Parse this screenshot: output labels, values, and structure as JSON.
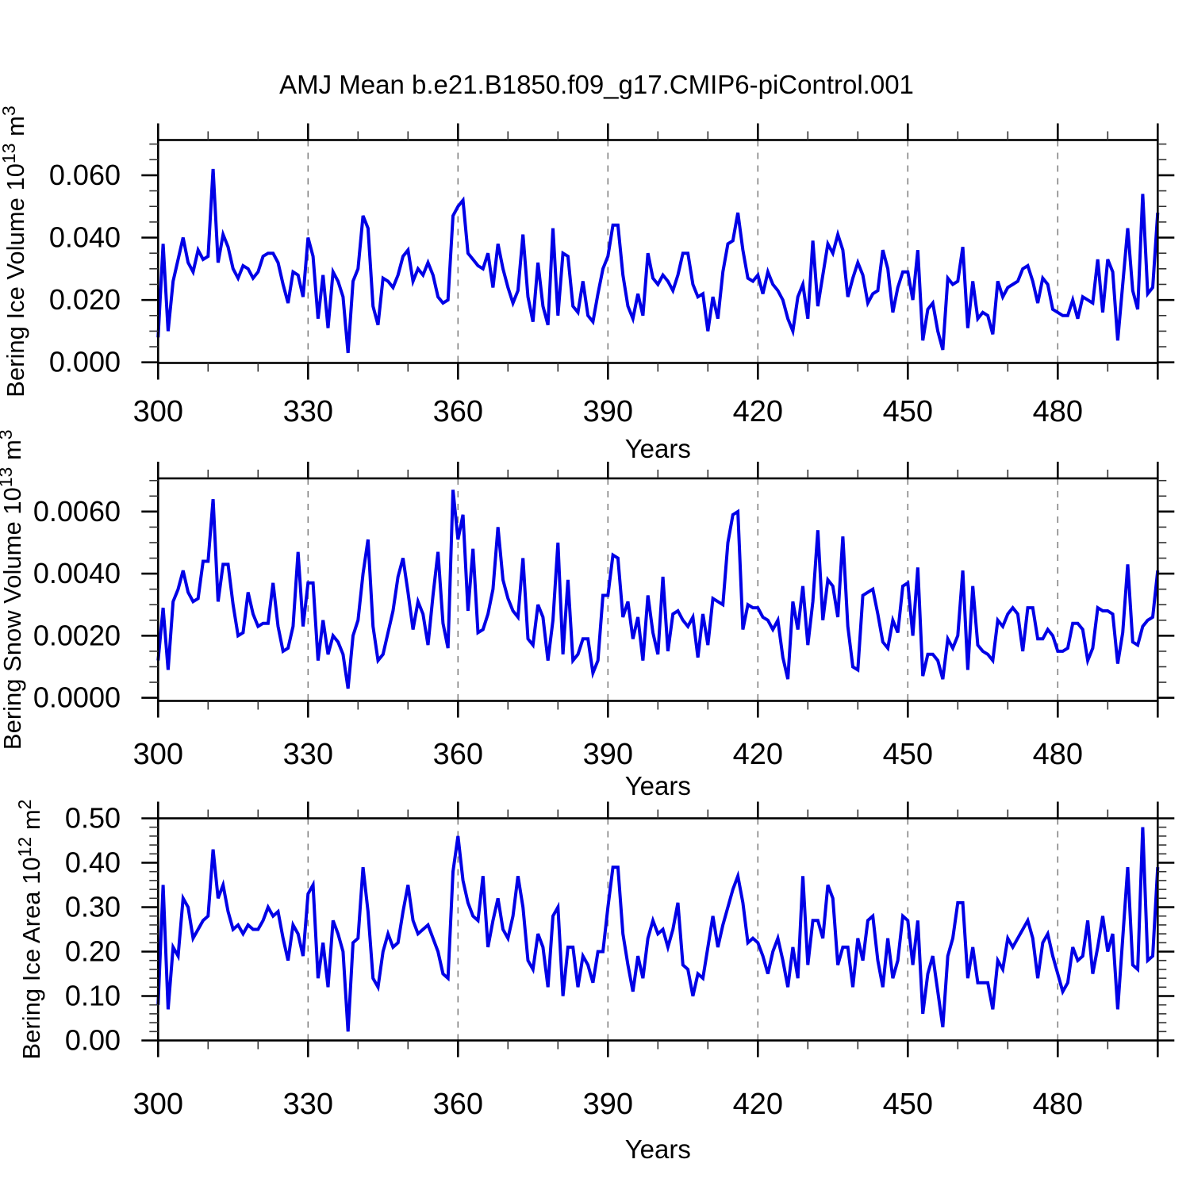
{
  "title": "AMJ Mean b.e21.B1850.f09_g17.CMIP6-piControl.001",
  "styles": {
    "line_color": "#0000e6",
    "grid_color": "#7d7d7d",
    "axis_color": "#000000",
    "minor_tick_color": "#333333"
  },
  "chart_data": [
    {
      "type": "line",
      "name": "bering-ice-volume",
      "ylabel": {
        "text": "Bering Ice Volume 10",
        "sup1": "13",
        "mid": " m",
        "sup2": "3"
      },
      "xlabel": "Years",
      "x_start": 300,
      "x_step": 1,
      "xlim": [
        300,
        500
      ],
      "ylim": [
        -0.0002,
        0.0713
      ],
      "x_ticks_major": [
        300,
        330,
        360,
        390,
        420,
        450,
        480
      ],
      "x_tick_labels": [
        "300",
        "330",
        "360",
        "390",
        "420",
        "450",
        "480"
      ],
      "x_minor_step": 10,
      "gridlines_x": [
        330,
        360,
        390,
        420,
        450,
        480
      ],
      "y_ticks": [
        0.0,
        0.02,
        0.04,
        0.06
      ],
      "y_tick_labels": [
        "0.000",
        "0.020",
        "0.040",
        "0.060"
      ],
      "y_minor_step": 0.005,
      "grid": "x-dashed",
      "legend": "none",
      "values": [
        0.008,
        0.038,
        0.01,
        0.026,
        0.033,
        0.04,
        0.032,
        0.029,
        0.036,
        0.033,
        0.034,
        0.062,
        0.032,
        0.041,
        0.037,
        0.03,
        0.027,
        0.031,
        0.03,
        0.027,
        0.029,
        0.034,
        0.035,
        0.035,
        0.032,
        0.025,
        0.019,
        0.029,
        0.028,
        0.021,
        0.04,
        0.034,
        0.014,
        0.028,
        0.011,
        0.029,
        0.026,
        0.021,
        0.003,
        0.026,
        0.03,
        0.047,
        0.043,
        0.018,
        0.012,
        0.027,
        0.026,
        0.024,
        0.028,
        0.034,
        0.036,
        0.026,
        0.03,
        0.028,
        0.032,
        0.028,
        0.021,
        0.019,
        0.02,
        0.047,
        0.05,
        0.052,
        0.035,
        0.033,
        0.031,
        0.03,
        0.035,
        0.024,
        0.038,
        0.03,
        0.024,
        0.019,
        0.023,
        0.041,
        0.021,
        0.013,
        0.032,
        0.018,
        0.012,
        0.043,
        0.015,
        0.035,
        0.034,
        0.018,
        0.016,
        0.026,
        0.015,
        0.013,
        0.022,
        0.03,
        0.034,
        0.044,
        0.044,
        0.028,
        0.018,
        0.014,
        0.022,
        0.015,
        0.035,
        0.027,
        0.025,
        0.028,
        0.026,
        0.023,
        0.028,
        0.035,
        0.035,
        0.025,
        0.021,
        0.022,
        0.01,
        0.021,
        0.014,
        0.029,
        0.038,
        0.039,
        0.048,
        0.036,
        0.027,
        0.026,
        0.028,
        0.022,
        0.029,
        0.025,
        0.023,
        0.02,
        0.014,
        0.01,
        0.021,
        0.025,
        0.014,
        0.039,
        0.018,
        0.028,
        0.038,
        0.035,
        0.041,
        0.036,
        0.021,
        0.027,
        0.032,
        0.028,
        0.019,
        0.022,
        0.023,
        0.036,
        0.03,
        0.016,
        0.024,
        0.029,
        0.029,
        0.02,
        0.036,
        0.007,
        0.017,
        0.019,
        0.01,
        0.004,
        0.027,
        0.025,
        0.026,
        0.037,
        0.011,
        0.026,
        0.014,
        0.016,
        0.015,
        0.009,
        0.026,
        0.021,
        0.024,
        0.025,
        0.026,
        0.03,
        0.031,
        0.026,
        0.019,
        0.027,
        0.025,
        0.017,
        0.016,
        0.015,
        0.015,
        0.02,
        0.014,
        0.021,
        0.02,
        0.019,
        0.033,
        0.016,
        0.033,
        0.029,
        0.007,
        0.025,
        0.043,
        0.023,
        0.017,
        0.054,
        0.022,
        0.024,
        0.048
      ]
    },
    {
      "type": "line",
      "name": "bering-snow-volume",
      "ylabel": {
        "text": "Bering Snow Volume 10",
        "sup1": "13",
        "mid": " m",
        "sup2": "3"
      },
      "xlabel": "Years",
      "x_start": 300,
      "x_step": 1,
      "xlim": [
        300,
        500
      ],
      "ylim": [
        -0.0001,
        0.00707
      ],
      "x_ticks_major": [
        300,
        330,
        360,
        390,
        420,
        450,
        480
      ],
      "x_tick_labels": [
        "300",
        "330",
        "360",
        "390",
        "420",
        "450",
        "480"
      ],
      "x_minor_step": 10,
      "gridlines_x": [
        330,
        360,
        390,
        420,
        450,
        480
      ],
      "y_ticks": [
        0.0,
        0.002,
        0.004,
        0.006
      ],
      "y_tick_labels": [
        "0.0000",
        "0.0020",
        "0.0040",
        "0.0060"
      ],
      "y_minor_step": 0.0005,
      "grid": "x-dashed",
      "legend": "none",
      "values": [
        0.0012,
        0.0029,
        0.0009,
        0.0031,
        0.0035,
        0.0041,
        0.0034,
        0.0031,
        0.0032,
        0.0044,
        0.0044,
        0.0064,
        0.0031,
        0.0043,
        0.0043,
        0.003,
        0.002,
        0.0021,
        0.0034,
        0.0027,
        0.0023,
        0.0024,
        0.0024,
        0.0037,
        0.0023,
        0.0015,
        0.0016,
        0.0023,
        0.0047,
        0.0023,
        0.0037,
        0.0037,
        0.0012,
        0.0025,
        0.0014,
        0.002,
        0.0018,
        0.0014,
        0.0003,
        0.002,
        0.0025,
        0.004,
        0.0051,
        0.0023,
        0.0012,
        0.0014,
        0.0021,
        0.0028,
        0.0039,
        0.0045,
        0.0034,
        0.0022,
        0.0031,
        0.0027,
        0.0017,
        0.0033,
        0.0047,
        0.0024,
        0.0016,
        0.0067,
        0.0051,
        0.0059,
        0.0028,
        0.0048,
        0.0021,
        0.0022,
        0.0027,
        0.0035,
        0.0055,
        0.0038,
        0.0032,
        0.0028,
        0.0026,
        0.0045,
        0.0019,
        0.0017,
        0.003,
        0.0026,
        0.0012,
        0.0025,
        0.005,
        0.0014,
        0.0038,
        0.0012,
        0.0014,
        0.0019,
        0.0019,
        0.0008,
        0.0012,
        0.0033,
        0.0033,
        0.0046,
        0.0045,
        0.0026,
        0.0031,
        0.0019,
        0.0026,
        0.0012,
        0.0033,
        0.0021,
        0.0014,
        0.0039,
        0.0015,
        0.0027,
        0.0028,
        0.0025,
        0.0023,
        0.0026,
        0.0013,
        0.0027,
        0.0017,
        0.0032,
        0.0031,
        0.003,
        0.005,
        0.0059,
        0.006,
        0.0022,
        0.003,
        0.0029,
        0.0029,
        0.0026,
        0.0025,
        0.0022,
        0.0025,
        0.0013,
        0.0006,
        0.0031,
        0.0022,
        0.0036,
        0.0017,
        0.0031,
        0.0054,
        0.0025,
        0.0038,
        0.0036,
        0.0026,
        0.0052,
        0.0023,
        0.001,
        0.0009,
        0.0033,
        0.0034,
        0.0035,
        0.0027,
        0.0018,
        0.0016,
        0.0025,
        0.0021,
        0.0036,
        0.0037,
        0.002,
        0.0042,
        0.0007,
        0.0014,
        0.0014,
        0.0012,
        0.0006,
        0.0019,
        0.0016,
        0.002,
        0.0041,
        0.0009,
        0.0036,
        0.0017,
        0.0015,
        0.0014,
        0.0012,
        0.0025,
        0.0023,
        0.0027,
        0.0029,
        0.0027,
        0.0015,
        0.0029,
        0.0029,
        0.0019,
        0.0019,
        0.0022,
        0.002,
        0.0015,
        0.0015,
        0.0016,
        0.0024,
        0.0024,
        0.0022,
        0.0012,
        0.0016,
        0.0029,
        0.0028,
        0.0028,
        0.0027,
        0.0011,
        0.0021,
        0.0043,
        0.0018,
        0.0017,
        0.0023,
        0.0025,
        0.0026,
        0.0041
      ]
    },
    {
      "type": "line",
      "name": "bering-ice-area",
      "ylabel": {
        "text": "Bering Ice Area 10",
        "sup1": "12",
        "mid": " m",
        "sup2": "2"
      },
      "xlabel": "Years",
      "x_start": 300,
      "x_step": 1,
      "xlim": [
        300,
        500
      ],
      "ylim": [
        0.0,
        0.5
      ],
      "x_ticks_major": [
        300,
        330,
        360,
        390,
        420,
        450,
        480
      ],
      "x_tick_labels": [
        "300",
        "330",
        "360",
        "390",
        "420",
        "450",
        "480"
      ],
      "x_minor_step": 10,
      "gridlines_x": [
        330,
        360,
        390,
        420,
        450,
        480
      ],
      "y_ticks": [
        0.0,
        0.1,
        0.2,
        0.3,
        0.4,
        0.5
      ],
      "y_tick_labels": [
        "0.00",
        "0.10",
        "0.20",
        "0.30",
        "0.40",
        "0.50"
      ],
      "y_minor_step": 0.02,
      "grid": "x-dashed",
      "legend": "none",
      "values": [
        0.08,
        0.35,
        0.07,
        0.21,
        0.19,
        0.32,
        0.3,
        0.23,
        0.25,
        0.27,
        0.28,
        0.43,
        0.32,
        0.35,
        0.29,
        0.25,
        0.26,
        0.24,
        0.26,
        0.25,
        0.25,
        0.27,
        0.3,
        0.28,
        0.29,
        0.23,
        0.18,
        0.26,
        0.24,
        0.19,
        0.33,
        0.35,
        0.14,
        0.22,
        0.12,
        0.27,
        0.24,
        0.2,
        0.02,
        0.22,
        0.23,
        0.39,
        0.29,
        0.14,
        0.12,
        0.2,
        0.24,
        0.21,
        0.22,
        0.29,
        0.35,
        0.27,
        0.24,
        0.25,
        0.26,
        0.23,
        0.2,
        0.15,
        0.14,
        0.38,
        0.46,
        0.36,
        0.31,
        0.28,
        0.27,
        0.37,
        0.21,
        0.27,
        0.32,
        0.25,
        0.23,
        0.28,
        0.37,
        0.3,
        0.18,
        0.16,
        0.24,
        0.21,
        0.12,
        0.28,
        0.3,
        0.1,
        0.21,
        0.21,
        0.12,
        0.19,
        0.17,
        0.13,
        0.2,
        0.2,
        0.3,
        0.39,
        0.39,
        0.24,
        0.17,
        0.11,
        0.19,
        0.14,
        0.23,
        0.27,
        0.24,
        0.25,
        0.21,
        0.25,
        0.31,
        0.17,
        0.16,
        0.1,
        0.15,
        0.14,
        0.21,
        0.28,
        0.21,
        0.26,
        0.3,
        0.34,
        0.37,
        0.31,
        0.22,
        0.23,
        0.22,
        0.19,
        0.15,
        0.2,
        0.23,
        0.18,
        0.12,
        0.21,
        0.14,
        0.37,
        0.17,
        0.27,
        0.27,
        0.23,
        0.35,
        0.32,
        0.17,
        0.21,
        0.21,
        0.12,
        0.23,
        0.18,
        0.27,
        0.28,
        0.18,
        0.12,
        0.23,
        0.14,
        0.18,
        0.28,
        0.27,
        0.17,
        0.27,
        0.06,
        0.15,
        0.19,
        0.11,
        0.03,
        0.19,
        0.23,
        0.31,
        0.31,
        0.14,
        0.21,
        0.13,
        0.13,
        0.13,
        0.07,
        0.18,
        0.16,
        0.23,
        0.21,
        0.23,
        0.25,
        0.27,
        0.23,
        0.14,
        0.22,
        0.24,
        0.19,
        0.15,
        0.11,
        0.13,
        0.21,
        0.18,
        0.19,
        0.27,
        0.15,
        0.21,
        0.28,
        0.2,
        0.24,
        0.07,
        0.23,
        0.39,
        0.17,
        0.16,
        0.48,
        0.18,
        0.19,
        0.39
      ]
    }
  ]
}
